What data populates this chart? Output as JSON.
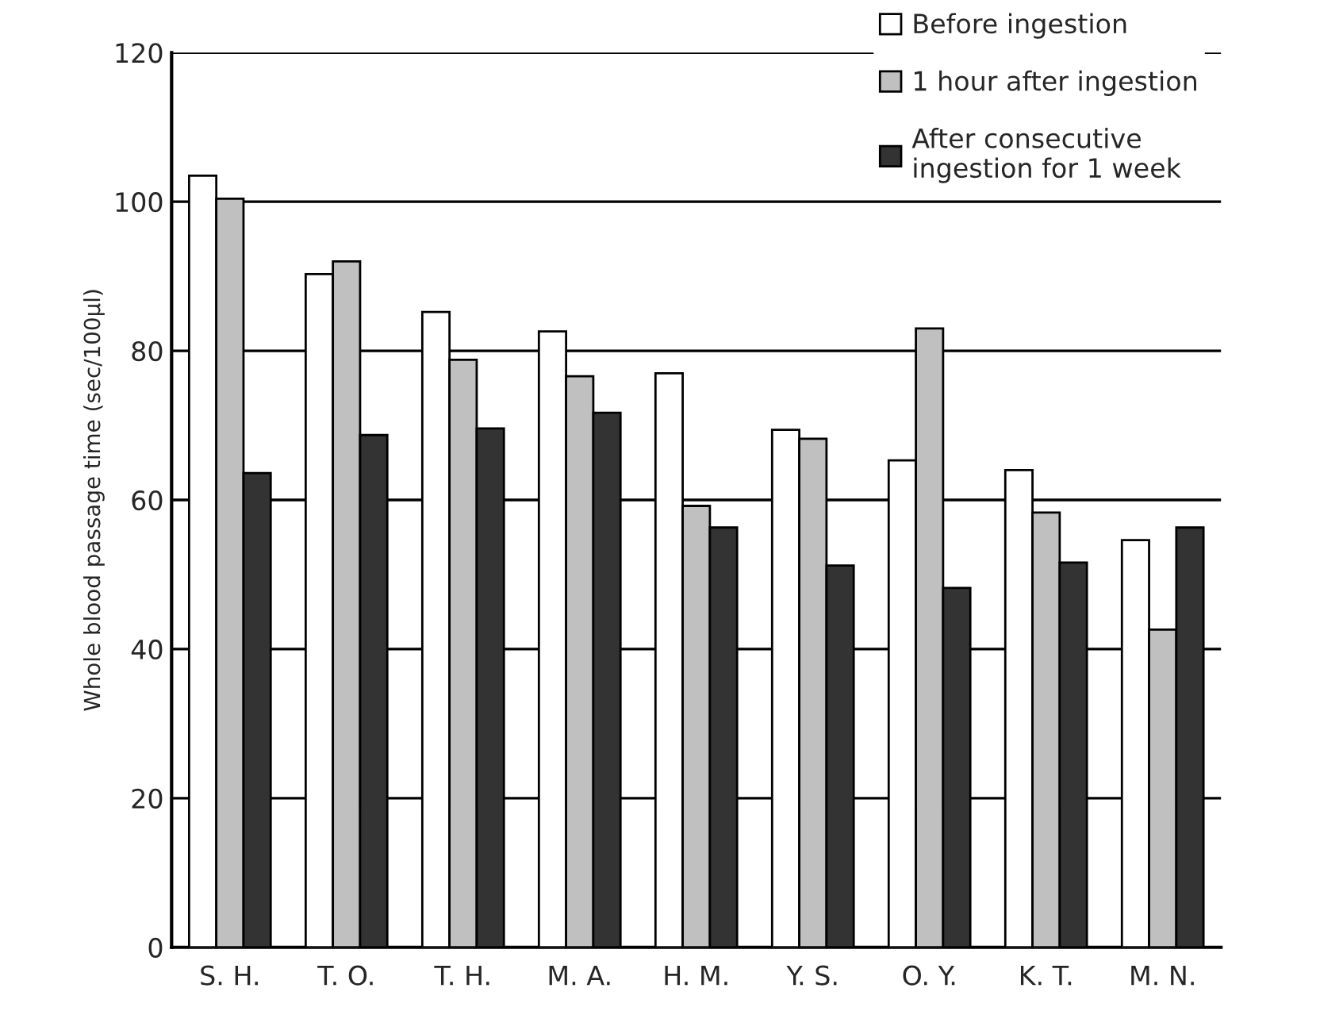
{
  "chart_data": {
    "type": "bar",
    "ylabel": "Whole blood passage time (sec/100μl)",
    "categories": [
      "S. H.",
      "T. O.",
      "T. H.",
      "M. A.",
      "H. M.",
      "Y. S.",
      "O. Y.",
      "K. T.",
      "M. N."
    ],
    "series": [
      {
        "name": "Before ingestion",
        "color": "#ffffff",
        "values": [
          103.5,
          90.3,
          85.2,
          82.6,
          77,
          69.4,
          65.3,
          64,
          54.6
        ]
      },
      {
        "name": "1 hour after ingestion",
        "color": "#c0c0c0",
        "values": [
          100.4,
          92,
          78.8,
          76.6,
          59.2,
          68.2,
          83,
          58.3,
          42.6
        ]
      },
      {
        "name": "After consecutive\ningestion for 1 week",
        "color": "#333333",
        "values": [
          63.6,
          68.7,
          69.6,
          71.7,
          56.3,
          51.2,
          48.2,
          51.6,
          56.3
        ]
      }
    ],
    "ylim": [
      0,
      120
    ],
    "yticks": [
      0,
      20,
      40,
      60,
      80,
      100,
      120
    ],
    "grid": "y",
    "legend": "top right"
  }
}
